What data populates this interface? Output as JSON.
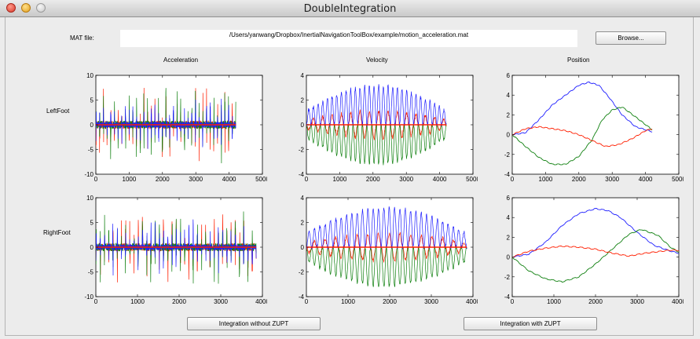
{
  "window": {
    "title": "DoubleIntegration"
  },
  "mat": {
    "label": "MAT file:",
    "path": "/Users/yanwang/Dropbox/InertialNavigationToolBox/example/motion_acceleration.mat",
    "browse_label": "Browse..."
  },
  "columns": [
    "Acceleration",
    "Velocity",
    "Position"
  ],
  "rows": [
    "LeftFoot",
    "RightFoot"
  ],
  "buttons": {
    "without_zupt": "Integration without ZUPT",
    "with_zupt": "Integration with ZUPT"
  },
  "colors": {
    "x": "#1f1fff",
    "y": "#108010",
    "z": "#ff1e00"
  },
  "chart_data": [
    {
      "type": "line",
      "title": "Acceleration",
      "row": "LeftFoot",
      "xlim": [
        0,
        5000
      ],
      "ylim": [
        -10,
        10
      ],
      "xticks": [
        "0",
        "1000",
        "2000",
        "3000",
        "4000",
        "5000"
      ],
      "yticks": [
        "-10",
        "-5",
        "0",
        "5",
        "10"
      ],
      "signal": "acc",
      "x_end": 4200,
      "seed": 3,
      "series": [
        {
          "values": [
            [
              0,
              0
            ],
            [
              4200,
              0
            ]
          ]
        }
      ]
    },
    {
      "type": "line",
      "title": "Velocity",
      "row": "LeftFoot",
      "xlim": [
        0,
        5000
      ],
      "ylim": [
        -4,
        4
      ],
      "xticks": [
        "0",
        "1000",
        "2000",
        "3000",
        "4000",
        "5000"
      ],
      "yticks": [
        "-4",
        "-2",
        "0",
        "2",
        "4"
      ],
      "signal": "vel",
      "x_end": 4200,
      "seed": 11,
      "series": [
        {
          "values": [
            [
              0,
              0
            ],
            [
              4200,
              0
            ]
          ]
        }
      ]
    },
    {
      "type": "line",
      "title": "Position",
      "row": "LeftFoot",
      "xlim": [
        0,
        5000
      ],
      "ylim": [
        -4,
        6
      ],
      "xticks": [
        "0",
        "1000",
        "2000",
        "3000",
        "4000",
        "5000"
      ],
      "yticks": [
        "-4",
        "-2",
        "0",
        "2",
        "4",
        "6"
      ],
      "signal": "pos",
      "x_end": 4200,
      "seed": 5,
      "series": [
        {
          "values": [
            [
              0,
              0
            ],
            [
              400,
              0.2
            ],
            [
              800,
              1.5
            ],
            [
              1200,
              3.0
            ],
            [
              1600,
              4.0
            ],
            [
              2000,
              5.0
            ],
            [
              2300,
              5.3
            ],
            [
              2600,
              5.0
            ],
            [
              2900,
              3.8
            ],
            [
              3300,
              2.0
            ],
            [
              3700,
              0.8
            ],
            [
              4200,
              0.3
            ]
          ]
        },
        {
          "values": [
            [
              0,
              0
            ],
            [
              400,
              -1.2
            ],
            [
              800,
              -2.3
            ],
            [
              1200,
              -3.0
            ],
            [
              1600,
              -3.0
            ],
            [
              2000,
              -2.2
            ],
            [
              2400,
              -0.5
            ],
            [
              2700,
              1.5
            ],
            [
              3000,
              2.5
            ],
            [
              3300,
              2.8
            ],
            [
              3700,
              1.8
            ],
            [
              4200,
              0.5
            ]
          ]
        },
        {
          "values": [
            [
              0,
              0
            ],
            [
              400,
              0.6
            ],
            [
              800,
              0.8
            ],
            [
              1200,
              0.6
            ],
            [
              1600,
              0.4
            ],
            [
              2000,
              0
            ],
            [
              2400,
              -0.6
            ],
            [
              2800,
              -1.2
            ],
            [
              3200,
              -1.0
            ],
            [
              3600,
              -0.4
            ],
            [
              4000,
              0.4
            ],
            [
              4200,
              0.6
            ]
          ]
        }
      ]
    },
    {
      "type": "line",
      "title": "Acceleration",
      "row": "RightFoot",
      "xlim": [
        0,
        4000
      ],
      "ylim": [
        -10,
        10
      ],
      "xticks": [
        "0",
        "1000",
        "2000",
        "3000",
        "4000"
      ],
      "yticks": [
        "-10",
        "-5",
        "0",
        "5",
        "10"
      ],
      "signal": "acc",
      "x_end": 3850,
      "seed": 7,
      "series": [
        {
          "values": [
            [
              0,
              0
            ],
            [
              3850,
              0
            ]
          ]
        }
      ]
    },
    {
      "type": "line",
      "title": "Velocity",
      "row": "RightFoot",
      "xlim": [
        0,
        4000
      ],
      "ylim": [
        -4,
        4
      ],
      "xticks": [
        "0",
        "1000",
        "2000",
        "3000",
        "4000"
      ],
      "yticks": [
        "-4",
        "-2",
        "0",
        "2",
        "4"
      ],
      "signal": "vel",
      "x_end": 3850,
      "seed": 17,
      "series": [
        {
          "values": [
            [
              0,
              0
            ],
            [
              3850,
              0
            ]
          ]
        }
      ]
    },
    {
      "type": "line",
      "title": "Position",
      "row": "RightFoot",
      "xlim": [
        0,
        4000
      ],
      "ylim": [
        -4,
        6
      ],
      "xticks": [
        "0",
        "1000",
        "2000",
        "3000",
        "4000"
      ],
      "yticks": [
        "-4",
        "-2",
        "0",
        "2",
        "4",
        "6"
      ],
      "signal": "pos",
      "x_end": 4000,
      "seed": 9,
      "series": [
        {
          "values": [
            [
              0,
              0
            ],
            [
              400,
              0.3
            ],
            [
              800,
              1.5
            ],
            [
              1200,
              3.2
            ],
            [
              1600,
              4.4
            ],
            [
              2000,
              4.9
            ],
            [
              2300,
              4.7
            ],
            [
              2600,
              4.0
            ],
            [
              3000,
              2.5
            ],
            [
              3400,
              1.2
            ],
            [
              3800,
              0.6
            ],
            [
              4000,
              0.4
            ]
          ]
        },
        {
          "values": [
            [
              0,
              0
            ],
            [
              400,
              -1.4
            ],
            [
              800,
              -2.2
            ],
            [
              1200,
              -2.5
            ],
            [
              1600,
              -2.0
            ],
            [
              2000,
              -0.7
            ],
            [
              2400,
              0.8
            ],
            [
              2800,
              2.3
            ],
            [
              3100,
              2.8
            ],
            [
              3500,
              2.2
            ],
            [
              3800,
              1.0
            ],
            [
              4000,
              0.5
            ]
          ]
        },
        {
          "values": [
            [
              0,
              0
            ],
            [
              400,
              0.6
            ],
            [
              800,
              0.9
            ],
            [
              1200,
              1.1
            ],
            [
              1600,
              1.0
            ],
            [
              2000,
              0.8
            ],
            [
              2400,
              0.4
            ],
            [
              2800,
              0.1
            ],
            [
              3200,
              0.4
            ],
            [
              3600,
              0.6
            ],
            [
              3800,
              0.7
            ],
            [
              4000,
              0.7
            ]
          ]
        }
      ]
    }
  ]
}
